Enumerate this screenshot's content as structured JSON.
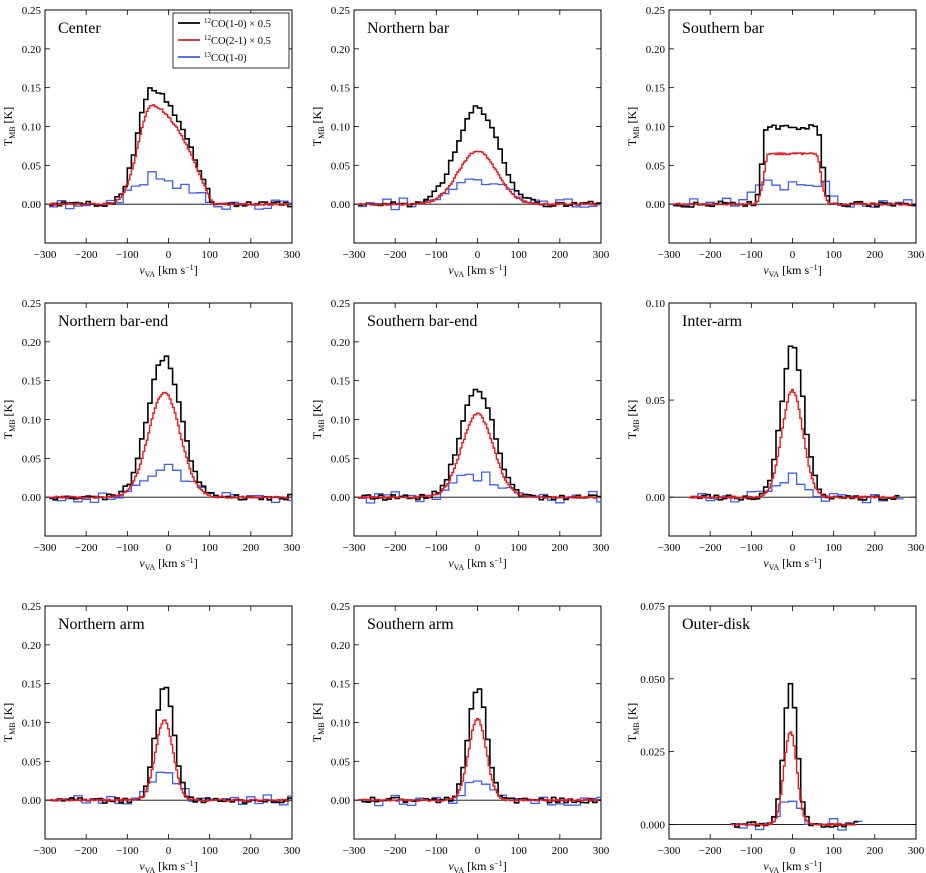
{
  "figure": {
    "xlabel_main": "v",
    "xlabel_sub": "VA",
    "xlabel_unit": " [km s",
    "xlabel_exp": "−1",
    "xlabel_close": "]",
    "ylabel_main": "T",
    "ylabel_sub": "MB",
    "ylabel_unit": " [K]"
  },
  "legend": {
    "entries": [
      {
        "iso": "12",
        "text": "CO(1-0) × 0.5",
        "color": "#000000"
      },
      {
        "iso": "12",
        "text": "CO(2-1) × 0.5",
        "color": "#e8191d"
      },
      {
        "iso": "13",
        "text": "CO(1-0)",
        "color": "#3d5ef2"
      }
    ]
  },
  "colors": {
    "co10": "#000000",
    "co21": "#e8191d",
    "co13": "#3d5ef2",
    "zero_line": "#000000"
  },
  "chart_data": [
    {
      "type": "line",
      "title": "Center",
      "xlabel": "v_VA [km s^-1]",
      "ylabel": "T_MB [K]",
      "xlim": [
        -300,
        300
      ],
      "ylim": [
        -0.05,
        0.25
      ],
      "xticks": [
        "−300",
        "−200",
        "−100",
        "0",
        "100",
        "200",
        "300"
      ],
      "xtick_values": [
        -300,
        -200,
        -100,
        0,
        100,
        200,
        300
      ],
      "yticks": [
        "0.00",
        "0.05",
        "0.10",
        "0.15",
        "0.20",
        "0.25"
      ],
      "ytick_values": [
        0,
        0.05,
        0.1,
        0.15,
        0.2,
        0.25
      ],
      "peaks": {
        "co10": 0.148,
        "co21": 0.128,
        "co13": 0.035
      },
      "profile": {
        "center": -40,
        "halfwidth": 110,
        "shape": "skew",
        "tail": 150
      }
    },
    {
      "type": "line",
      "title": "Northern bar",
      "xlabel": "v_VA [km s^-1]",
      "ylabel": "T_MB [K]",
      "xlim": [
        -300,
        300
      ],
      "ylim": [
        -0.05,
        0.25
      ],
      "xticks": [
        "−300",
        "−200",
        "−100",
        "0",
        "100",
        "200",
        "300"
      ],
      "xtick_values": [
        -300,
        -200,
        -100,
        0,
        100,
        200,
        300
      ],
      "yticks": [
        "0.00",
        "0.05",
        "0.10",
        "0.15",
        "0.20",
        "0.25"
      ],
      "ytick_values": [
        0,
        0.05,
        0.1,
        0.15,
        0.2,
        0.25
      ],
      "peaks": {
        "co10": 0.125,
        "co21": 0.068,
        "co13": 0.03
      },
      "profile": {
        "center": 0,
        "halfwidth": 55,
        "shape": "gauss"
      }
    },
    {
      "type": "line",
      "title": "Southern bar",
      "xlabel": "v_VA [km s^-1]",
      "ylabel": "T_MB [K]",
      "xlim": [
        -300,
        300
      ],
      "ylim": [
        -0.05,
        0.25
      ],
      "xticks": [
        "−300",
        "−200",
        "−100",
        "0",
        "100",
        "200",
        "300"
      ],
      "xtick_values": [
        -300,
        -200,
        -100,
        0,
        100,
        200,
        300
      ],
      "yticks": [
        "0.00",
        "0.05",
        "0.10",
        "0.15",
        "0.20",
        "0.25"
      ],
      "ytick_values": [
        0,
        0.05,
        0.1,
        0.15,
        0.2,
        0.25
      ],
      "peaks": {
        "co10": 0.1,
        "co21": 0.065,
        "co13": 0.025
      },
      "profile": {
        "center": 0,
        "halfwidth": 80,
        "shape": "flat"
      }
    },
    {
      "type": "line",
      "title": "Northern bar-end",
      "xlabel": "v_VA [km s^-1]",
      "ylabel": "T_MB [K]",
      "xlim": [
        -300,
        300
      ],
      "ylim": [
        -0.05,
        0.25
      ],
      "xticks": [
        "−300",
        "−200",
        "−100",
        "0",
        "100",
        "200",
        "300"
      ],
      "xtick_values": [
        -300,
        -200,
        -100,
        0,
        100,
        200,
        300
      ],
      "yticks": [
        "0.00",
        "0.05",
        "0.10",
        "0.15",
        "0.20",
        "0.25"
      ],
      "ytick_values": [
        0,
        0.05,
        0.1,
        0.15,
        0.2,
        0.25
      ],
      "peaks": {
        "co10": 0.18,
        "co21": 0.135,
        "co13": 0.037
      },
      "profile": {
        "center": -10,
        "halfwidth": 45,
        "shape": "gauss"
      }
    },
    {
      "type": "line",
      "title": "Southern bar-end",
      "xlabel": "v_VA [km s^-1]",
      "ylabel": "T_MB [K]",
      "xlim": [
        -300,
        300
      ],
      "ylim": [
        -0.05,
        0.25
      ],
      "xticks": [
        "−300",
        "−200",
        "−100",
        "0",
        "100",
        "200",
        "300"
      ],
      "xtick_values": [
        -300,
        -200,
        -100,
        0,
        100,
        200,
        300
      ],
      "yticks": [
        "0.00",
        "0.05",
        "0.10",
        "0.15",
        "0.20",
        "0.25"
      ],
      "ytick_values": [
        0,
        0.05,
        0.1,
        0.15,
        0.2,
        0.25
      ],
      "peaks": {
        "co10": 0.14,
        "co21": 0.107,
        "co13": 0.028
      },
      "profile": {
        "center": 0,
        "halfwidth": 45,
        "shape": "gauss"
      }
    },
    {
      "type": "line",
      "title": "Inter-arm",
      "xlabel": "v_VA [km s^-1]",
      "ylabel": "T_MB [K]",
      "xlim": [
        -300,
        300
      ],
      "ylim": [
        -0.02,
        0.1
      ],
      "xticks": [
        "−300",
        "−200",
        "−100",
        "0",
        "100",
        "200",
        "300"
      ],
      "xtick_values": [
        -300,
        -200,
        -100,
        0,
        100,
        200,
        300
      ],
      "yticks": [
        "0.00",
        "0.05",
        "0.10"
      ],
      "ytick_values": [
        0,
        0.05,
        0.1
      ],
      "peaks": {
        "co10": 0.078,
        "co21": 0.055,
        "co13": 0.011
      },
      "profile": {
        "center": 0,
        "halfwidth": 30,
        "shape": "gauss"
      }
    },
    {
      "type": "line",
      "title": "Northern arm",
      "xlabel": "v_VA [km s^-1]",
      "ylabel": "T_MB [K]",
      "xlim": [
        -300,
        300
      ],
      "ylim": [
        -0.05,
        0.25
      ],
      "xticks": [
        "−300",
        "−200",
        "−100",
        "0",
        "100",
        "200",
        "300"
      ],
      "xtick_values": [
        -300,
        -200,
        -100,
        0,
        100,
        200,
        300
      ],
      "yticks": [
        "0.00",
        "0.05",
        "0.10",
        "0.15",
        "0.20",
        "0.25"
      ],
      "ytick_values": [
        0,
        0.05,
        0.1,
        0.15,
        0.2,
        0.25
      ],
      "peaks": {
        "co10": 0.148,
        "co21": 0.103,
        "co13": 0.04
      },
      "profile": {
        "center": -10,
        "halfwidth": 25,
        "shape": "gauss"
      }
    },
    {
      "type": "line",
      "title": "Southern arm",
      "xlabel": "v_VA [km s^-1]",
      "ylabel": "T_MB [K]",
      "xlim": [
        -300,
        300
      ],
      "ylim": [
        -0.05,
        0.25
      ],
      "xticks": [
        "−300",
        "−200",
        "−100",
        "0",
        "100",
        "200",
        "300"
      ],
      "xtick_values": [
        -300,
        -200,
        -100,
        0,
        100,
        200,
        300
      ],
      "yticks": [
        "0.00",
        "0.05",
        "0.10",
        "0.15",
        "0.20",
        "0.25"
      ],
      "ytick_values": [
        0,
        0.05,
        0.1,
        0.15,
        0.2,
        0.25
      ],
      "peaks": {
        "co10": 0.145,
        "co21": 0.105,
        "co13": 0.025
      },
      "profile": {
        "center": 0,
        "halfwidth": 25,
        "shape": "gauss"
      }
    },
    {
      "type": "line",
      "title": "Outer-disk",
      "xlabel": "v_VA [km s^-1]",
      "ylabel": "T_MB [K]",
      "xlim": [
        -300,
        300
      ],
      "ylim": [
        -0.005,
        0.075
      ],
      "xticks": [
        "−300",
        "−200",
        "−100",
        "0",
        "100",
        "200",
        "300"
      ],
      "xtick_values": [
        -300,
        -200,
        -100,
        0,
        100,
        200,
        300
      ],
      "yticks": [
        "0.000",
        "0.025",
        "0.050",
        "0.075"
      ],
      "ytick_values": [
        0,
        0.025,
        0.05,
        0.075
      ],
      "peaks": {
        "co10": 0.048,
        "co21": 0.032,
        "co13": 0.008
      },
      "profile": {
        "center": -5,
        "halfwidth": 18,
        "shape": "gauss"
      }
    }
  ]
}
